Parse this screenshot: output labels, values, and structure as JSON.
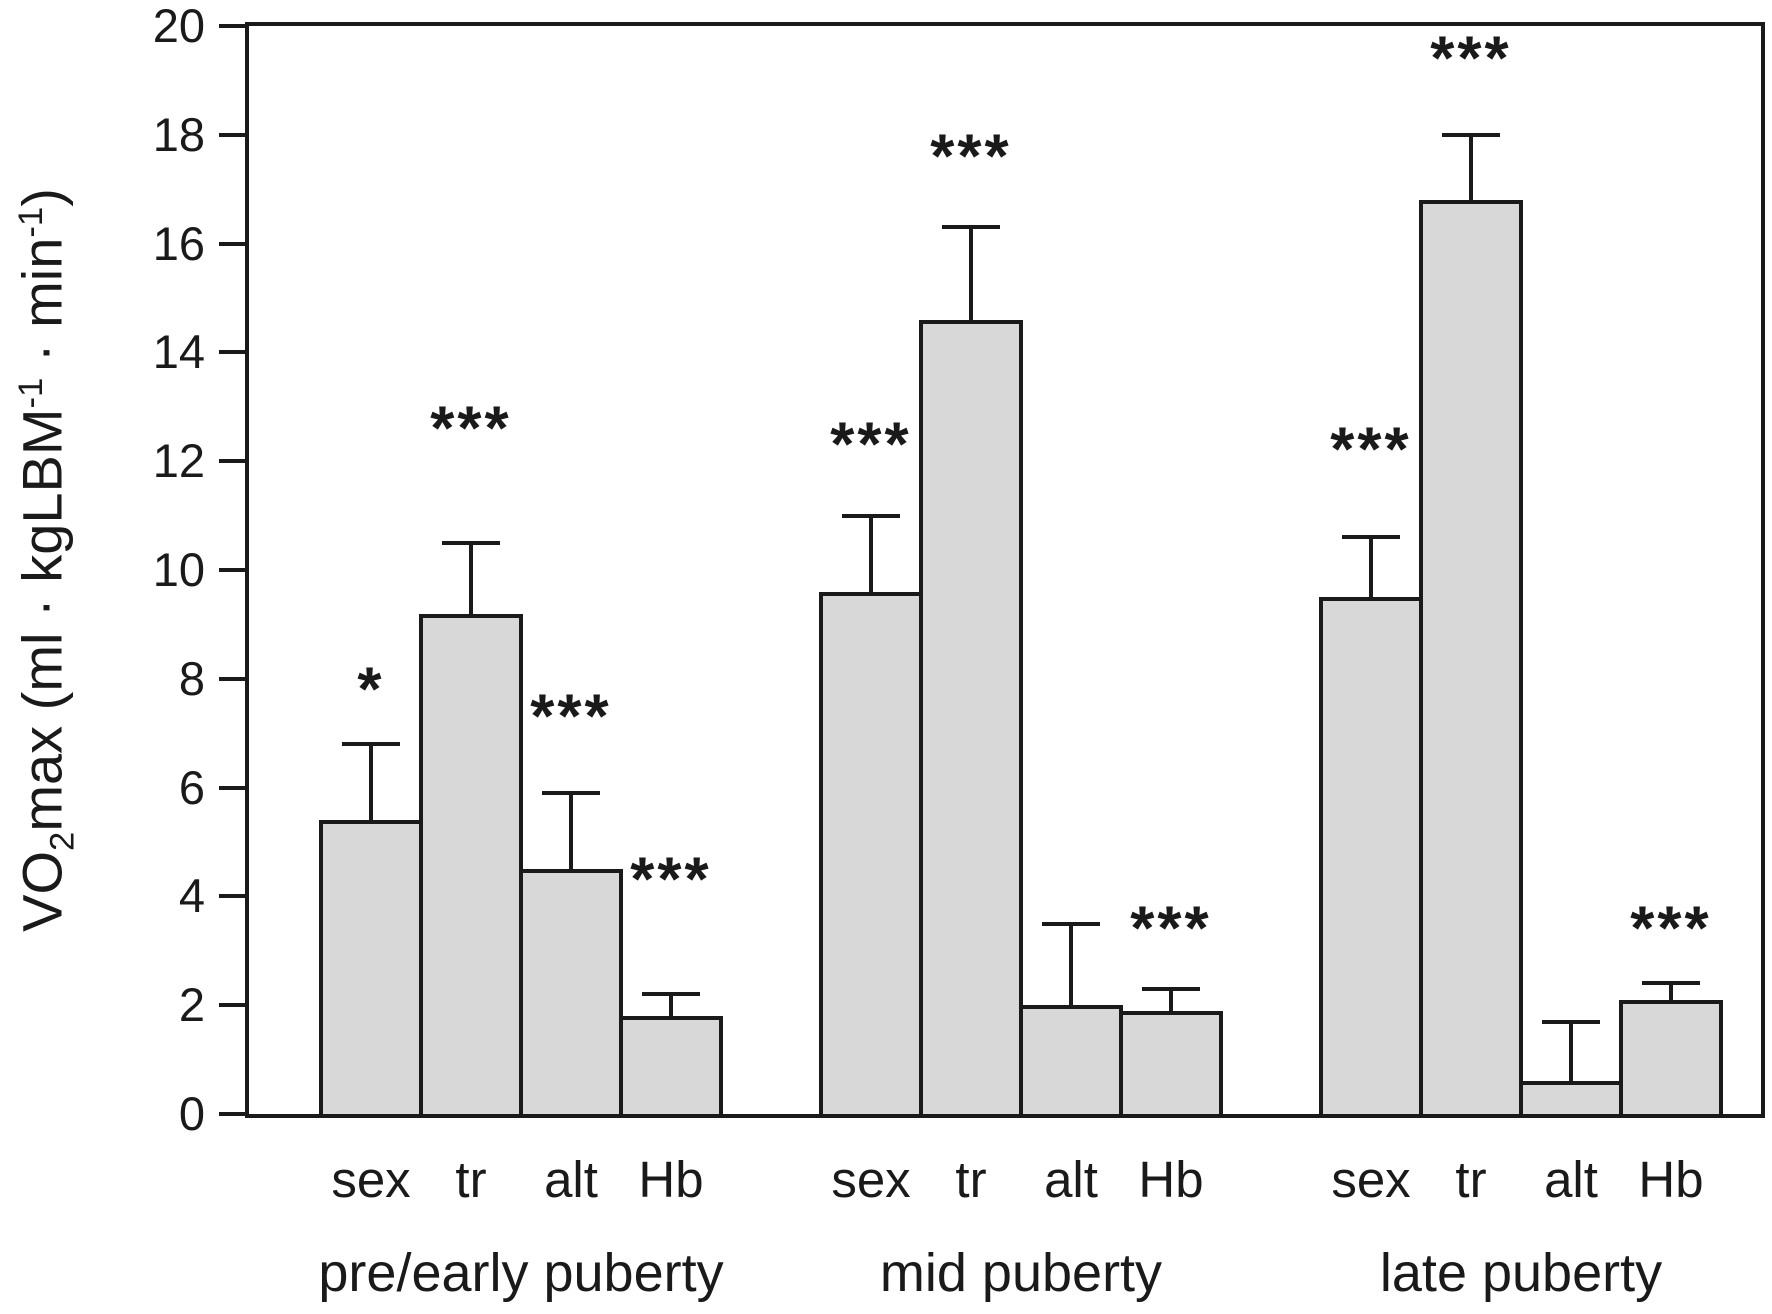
{
  "figure": {
    "y_axis_title": {
      "pre": "VO",
      "sub": "2",
      "seg1": "max (ml · kgLBM",
      "sup1": "-1",
      "seg2": " · min",
      "sup2": "-1",
      "seg3": ")"
    }
  },
  "chart_data": {
    "type": "bar",
    "title": "",
    "xlabel": "",
    "ylabel": "VO2max (ml · kgLBM-1 · min-1)",
    "ylim": [
      0,
      20
    ],
    "ytick_step": 2,
    "yticks": [
      "0",
      "2",
      "4",
      "6",
      "8",
      "10",
      "12",
      "14",
      "16",
      "18",
      "20"
    ],
    "grid": false,
    "legend": "none",
    "bar_fill": "#d8d8d8",
    "line_color": "#1a1a1a",
    "categories": [
      "sex",
      "tr",
      "alt",
      "Hb"
    ],
    "error_bars": "upper_only",
    "groups": [
      {
        "label": "pre/early puberty",
        "bars": [
          {
            "category": "sex",
            "value": 5.4,
            "error_top": 6.8,
            "sig": "*",
            "sig_y": 7.8
          },
          {
            "category": "tr",
            "value": 9.2,
            "error_top": 10.5,
            "sig": "***",
            "sig_y": 12.6
          },
          {
            "category": "alt",
            "value": 4.5,
            "error_top": 5.9,
            "sig": "***",
            "sig_y": 7.3
          },
          {
            "category": "Hb",
            "value": 1.8,
            "error_top": 2.2,
            "sig": "***",
            "sig_y": 4.3
          }
        ]
      },
      {
        "label": "mid puberty",
        "bars": [
          {
            "category": "sex",
            "value": 9.6,
            "error_top": 11.0,
            "sig": "***",
            "sig_y": 12.3
          },
          {
            "category": "tr",
            "value": 14.6,
            "error_top": 16.3,
            "sig": "***",
            "sig_y": 17.6
          },
          {
            "category": "alt",
            "value": 2.0,
            "error_top": 3.5,
            "sig": null,
            "sig_y": null
          },
          {
            "category": "Hb",
            "value": 1.9,
            "error_top": 2.3,
            "sig": "***",
            "sig_y": 3.4
          }
        ]
      },
      {
        "label": "late puberty",
        "bars": [
          {
            "category": "sex",
            "value": 9.5,
            "error_top": 10.6,
            "sig": "***",
            "sig_y": 12.2
          },
          {
            "category": "tr",
            "value": 16.8,
            "error_top": 18.0,
            "sig": "***",
            "sig_y": 19.4
          },
          {
            "category": "alt",
            "value": 0.6,
            "error_top": 1.7,
            "sig": null,
            "sig_y": null
          },
          {
            "category": "Hb",
            "value": 2.1,
            "error_top": 2.4,
            "sig": "***",
            "sig_y": 3.4
          }
        ]
      }
    ]
  }
}
